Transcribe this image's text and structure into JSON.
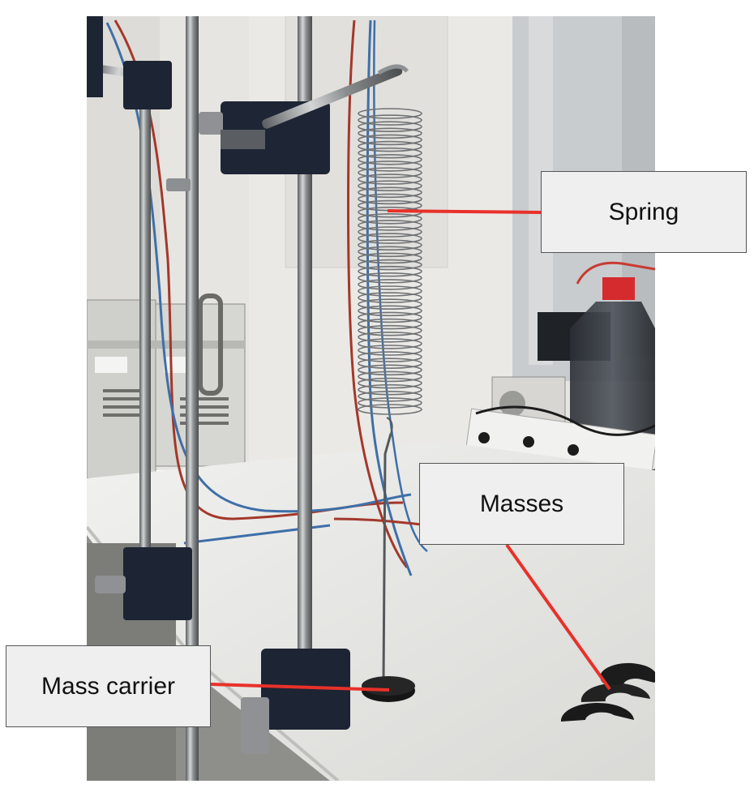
{
  "labels": {
    "spring": "Spring",
    "masses": "Masses",
    "mass_carrier": "Mass carrier"
  },
  "colors": {
    "leader_line": "#e8312a",
    "label_background": "#efefef",
    "label_border": "#555555"
  }
}
